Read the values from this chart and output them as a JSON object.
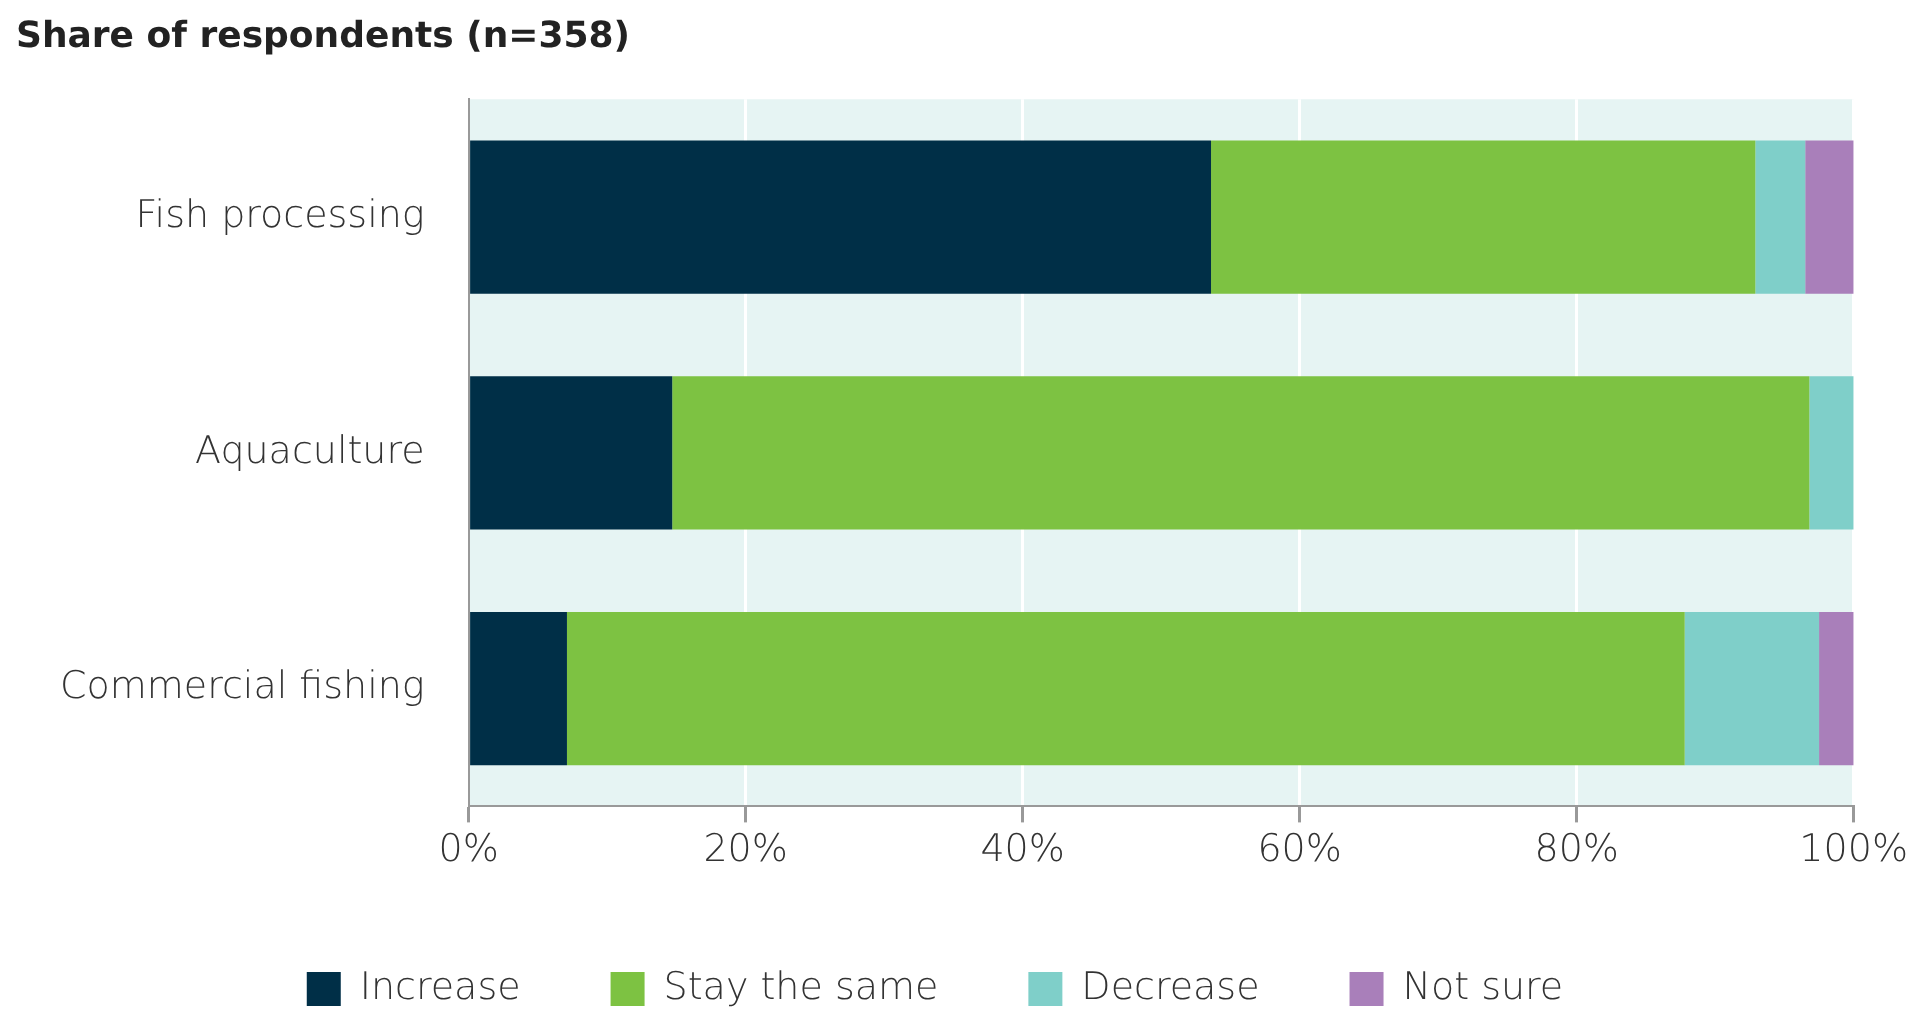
{
  "chart_data": {
    "type": "bar",
    "orientation": "horizontal",
    "stacked": true,
    "title": "Share of respondents (n=358)",
    "categories": [
      "Fish processing",
      "Aquaculture",
      "Commercial fishing"
    ],
    "series": [
      {
        "name": "Increase",
        "color": "#002f47",
        "values": [
          53.6,
          14.7,
          7.1
        ]
      },
      {
        "name": "Stay the same",
        "color": "#7dc242",
        "values": [
          39.3,
          82.1,
          80.7
        ]
      },
      {
        "name": "Decrease",
        "color": "#7fcfc9",
        "values": [
          3.6,
          3.2,
          9.7
        ]
      },
      {
        "name": "Not sure",
        "color": "#a97fba",
        "values": [
          3.5,
          0,
          2.5
        ]
      }
    ],
    "xlim": [
      0,
      100
    ],
    "xticks": [
      {
        "value": 0,
        "label": "0%"
      },
      {
        "value": 20,
        "label": "20%"
      },
      {
        "value": 40,
        "label": "40%"
      },
      {
        "value": 60,
        "label": "60%"
      },
      {
        "value": 80,
        "label": "80%"
      },
      {
        "value": 100,
        "label": "100%"
      }
    ],
    "grid": "x",
    "legend": "bottom"
  }
}
